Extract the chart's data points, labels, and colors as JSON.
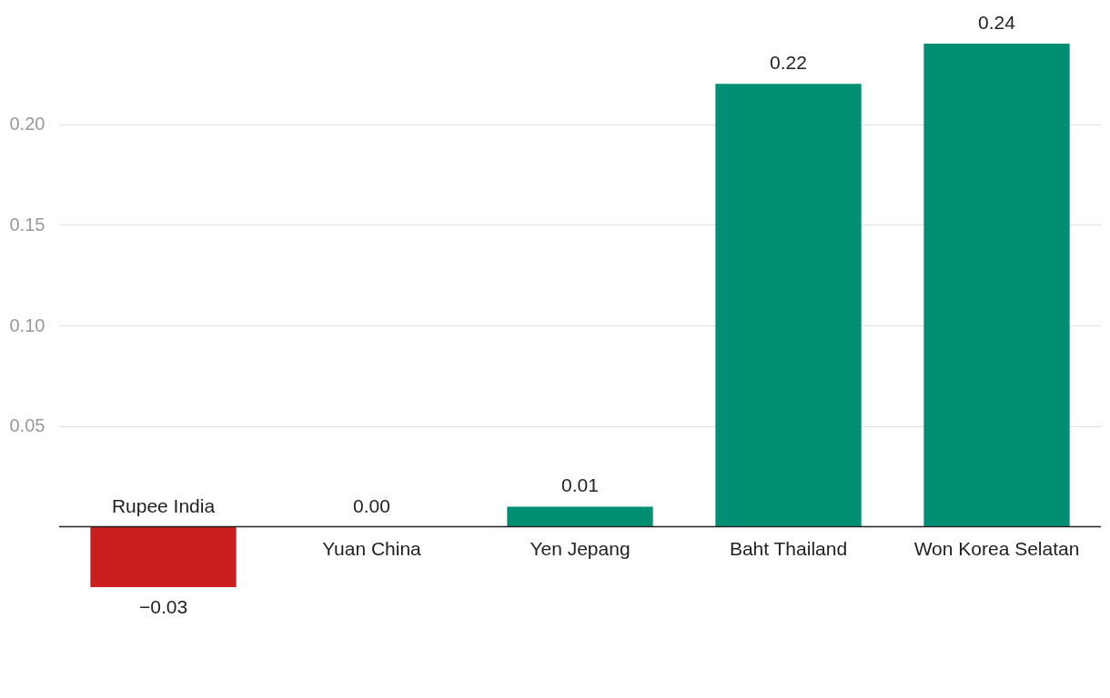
{
  "chart_data": {
    "type": "bar",
    "categories": [
      "Rupee India",
      "Yuan China",
      "Yen Jepang",
      "Baht Thailand",
      "Won Korea Selatan"
    ],
    "values": [
      -0.03,
      0.0,
      0.01,
      0.22,
      0.24
    ],
    "colors": [
      "#c91f1f",
      "#008f73",
      "#008f73",
      "#008f73",
      "#008f73"
    ],
    "value_labels": [
      "−0.03",
      "0.00",
      "0.01",
      "0.22",
      "0.24"
    ],
    "ylim": [
      -0.03,
      0.24
    ],
    "yticks": [
      {
        "value": 0.05,
        "label": "0.05"
      },
      {
        "value": 0.1,
        "label": "0.10"
      },
      {
        "value": 0.15,
        "label": "0.15"
      },
      {
        "value": 0.2,
        "label": "0.20"
      }
    ],
    "grid": "y"
  }
}
